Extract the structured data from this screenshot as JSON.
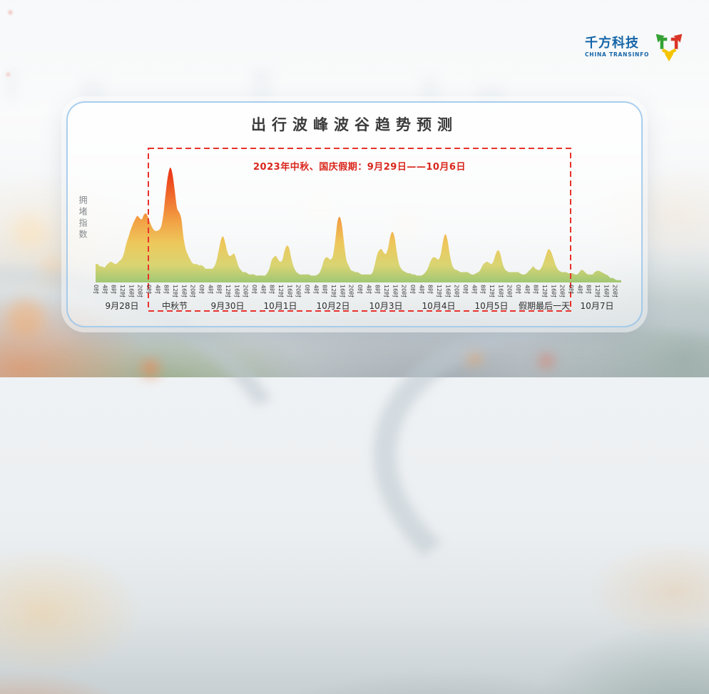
{
  "logo": {
    "name": "千方科技",
    "subtitle": "CHINA TRANSINFO",
    "text_color": "#1565a8",
    "icon": "cube-arrows-icon",
    "icon_colors": {
      "green": "#35a135",
      "red": "#da3526",
      "yellow": "#f5c400"
    }
  },
  "chart_data": {
    "type": "area",
    "title": "出行波峰波谷趋势预测",
    "ylabel": "拥堵指数",
    "annotation": "2023年中秋、国庆假期：9月29日——10月6日",
    "annotation_color": "#d9261c",
    "highlight_color": "#e8322b",
    "highlight_range": {
      "from": "9月29日 0时",
      "to": "10月6日 24时"
    },
    "x_axis": {
      "tick_hours": [
        0,
        4,
        8,
        12,
        16,
        20
      ],
      "tick_label_suffix": "时"
    },
    "value_scale": "relative congestion index 0-100 (100 = Mid-Autumn morning peak)",
    "legend": "none",
    "grid": "off",
    "days": [
      {
        "label": "9月28日",
        "values": [
          16,
          16,
          14,
          14,
          13,
          15,
          17,
          18,
          17,
          16,
          17,
          19,
          21,
          26,
          34,
          40,
          46,
          51,
          55,
          58,
          56,
          55,
          59,
          60
        ]
      },
      {
        "label": "中秋节",
        "values": [
          56,
          51,
          47,
          45,
          45,
          46,
          50,
          62,
          80,
          94,
          100,
          94,
          80,
          65,
          61,
          55,
          39,
          29,
          24,
          20,
          17,
          16,
          16,
          15
        ]
      },
      {
        "label": "9月30日",
        "values": [
          15,
          14,
          12,
          12,
          12,
          12,
          14,
          19,
          28,
          37,
          40,
          34,
          26,
          23,
          24,
          25,
          20,
          14,
          11,
          9,
          9,
          8,
          7,
          7
        ]
      },
      {
        "label": "10月1日",
        "values": [
          7,
          6,
          6,
          6,
          6,
          6,
          8,
          12,
          19,
          22,
          23,
          20,
          18,
          20,
          28,
          32,
          30,
          21,
          14,
          10,
          8,
          7,
          7,
          7
        ]
      },
      {
        "label": "10月2日",
        "values": [
          7,
          7,
          6,
          6,
          6,
          7,
          9,
          14,
          20,
          22,
          21,
          20,
          24,
          37,
          53,
          57,
          50,
          34,
          20,
          15,
          11,
          10,
          9,
          9
        ]
      },
      {
        "label": "10月3日",
        "values": [
          8,
          7,
          7,
          7,
          7,
          7,
          9,
          16,
          24,
          28,
          29,
          26,
          25,
          30,
          40,
          44,
          39,
          26,
          16,
          12,
          10,
          9,
          8,
          8
        ]
      },
      {
        "label": "10月4日",
        "values": [
          7,
          7,
          6,
          6,
          6,
          7,
          9,
          12,
          17,
          21,
          22,
          21,
          20,
          25,
          36,
          42,
          37,
          25,
          16,
          12,
          11,
          10,
          9,
          9
        ]
      },
      {
        "label": "10月5日",
        "values": [
          9,
          9,
          8,
          7,
          7,
          8,
          9,
          11,
          15,
          17,
          18,
          17,
          16,
          19,
          25,
          28,
          25,
          17,
          12,
          10,
          9,
          9,
          9,
          9
        ]
      },
      {
        "label": "假期最后一天",
        "values": [
          9,
          8,
          7,
          7,
          8,
          10,
          12,
          14,
          12,
          11,
          11,
          14,
          19,
          25,
          29,
          27,
          22,
          16,
          12,
          10,
          9,
          9,
          9,
          8
        ]
      },
      {
        "label": "10月7日",
        "values": [
          8,
          8,
          7,
          7,
          9,
          11,
          10,
          8,
          7,
          7,
          7,
          9,
          10,
          10,
          9,
          8,
          7,
          6,
          4,
          4,
          3,
          2,
          2,
          2
        ]
      }
    ],
    "gradient": [
      {
        "offset": 0.0,
        "color": "#ea250c"
      },
      {
        "offset": 0.2,
        "color": "#ee5a1e"
      },
      {
        "offset": 0.45,
        "color": "#f29a3b"
      },
      {
        "offset": 0.66,
        "color": "#edc655"
      },
      {
        "offset": 0.85,
        "color": "#d8d36d"
      },
      {
        "offset": 1.0,
        "color": "#9dc56f"
      }
    ]
  }
}
